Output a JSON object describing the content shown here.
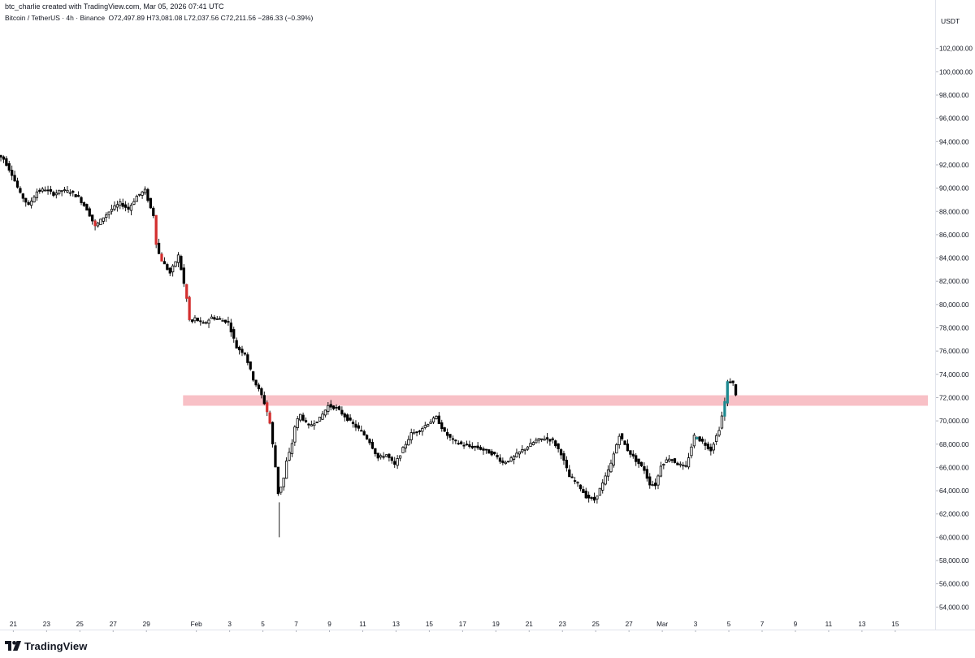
{
  "header": {
    "credit": "btc_charlie created with TradingView.com, Mar 05, 2026 07:41 UTC"
  },
  "legend": {
    "symbol": "Bitcoin / TetherUS · 4h · Binance",
    "open": "O72,497.89",
    "high": "H73,081.08",
    "low": "L72,037.56",
    "close": "C72,211.56",
    "change": "−286.33 (−0.39%)"
  },
  "price_axis": {
    "currency": "USDT"
  },
  "footer": {
    "brand": "TradingView",
    "logo_icon": "tradingview-logo-icon"
  },
  "colors": {
    "up_body": "#ffffff",
    "down_body": "#000000",
    "wick": "#000000",
    "zone": "#f8c0c6",
    "highlight_red": "#d32f2f",
    "highlight_teal": "#1e8a91",
    "grid": "#e0e3eb"
  },
  "chart_data": {
    "type": "candlestick",
    "symbol": "Bitcoin / TetherUS",
    "interval": "4h",
    "exchange": "Binance",
    "y_ticks": [
      102000,
      100000,
      98000,
      96000,
      94000,
      92000,
      90000,
      88000,
      86000,
      84000,
      82000,
      80000,
      78000,
      76000,
      74000,
      72000,
      70000,
      68000,
      66000,
      64000,
      62000,
      60000,
      58000,
      56000,
      54000
    ],
    "y_tick_labels": [
      "102,000.00",
      "100,000.00",
      "98,000.00",
      "96,000.00",
      "94,000.00",
      "92,000.00",
      "90,000.00",
      "88,000.00",
      "86,000.00",
      "84,000.00",
      "82,000.00",
      "80,000.00",
      "78,000.00",
      "76,000.00",
      "74,000.00",
      "72,000.00",
      "70,000.00",
      "68,000.00",
      "66,000.00",
      "64,000.00",
      "62,000.00",
      "60,000.00",
      "58,000.00",
      "56,000.00",
      "54,000.00"
    ],
    "ylim": [
      53000,
      103500
    ],
    "x_labels": [
      "21",
      "23",
      "25",
      "27",
      "29",
      "Feb",
      "3",
      "5",
      "7",
      "9",
      "11",
      "13",
      "15",
      "17",
      "19",
      "21",
      "23",
      "25",
      "27",
      "Mar",
      "3",
      "5",
      "7",
      "9",
      "11",
      "13",
      "15"
    ],
    "x_label_days": [
      -11,
      -9,
      -7,
      -5,
      -3,
      0,
      2,
      4,
      6,
      8,
      10,
      12,
      14,
      16,
      18,
      20,
      22,
      24,
      26,
      28,
      30,
      32,
      34,
      36,
      38,
      40,
      42
    ],
    "x_range_days": [
      -11.8,
      44.4
    ],
    "zone": {
      "low": 71300,
      "high": 72200,
      "start_day": -0.8
    },
    "keypoints": [
      [
        -12.0,
        93000
      ],
      [
        -11.5,
        92500
      ],
      [
        -11.0,
        91200
      ],
      [
        -10.5,
        89500
      ],
      [
        -10.0,
        88500
      ],
      [
        -9.5,
        89700
      ],
      [
        -9.0,
        89900
      ],
      [
        -8.5,
        89500
      ],
      [
        -8.0,
        89800
      ],
      [
        -7.5,
        89700
      ],
      [
        -7.0,
        89200
      ],
      [
        -6.5,
        88200
      ],
      [
        -6.0,
        86700
      ],
      [
        -5.5,
        87500
      ],
      [
        -5.0,
        88200
      ],
      [
        -4.5,
        88700
      ],
      [
        -4.0,
        88200
      ],
      [
        -3.5,
        89300
      ],
      [
        -3.0,
        89800
      ],
      [
        -2.7,
        88400
      ],
      [
        -2.5,
        87700
      ],
      [
        -2.3,
        84800
      ],
      [
        -2.0,
        83800
      ],
      [
        -1.5,
        82700
      ],
      [
        -1.0,
        84200
      ],
      [
        -0.8,
        82800
      ],
      [
        -0.5,
        80500
      ],
      [
        -0.3,
        78300
      ],
      [
        0.0,
        78800
      ],
      [
        0.5,
        78300
      ],
      [
        1.0,
        78900
      ],
      [
        1.5,
        78700
      ],
      [
        2.0,
        78500
      ],
      [
        2.5,
        76300
      ],
      [
        3.0,
        75800
      ],
      [
        3.5,
        73600
      ],
      [
        4.0,
        72200
      ],
      [
        4.3,
        71000
      ],
      [
        4.5,
        69800
      ],
      [
        4.8,
        66500
      ],
      [
        5.0,
        63800
      ],
      [
        5.3,
        64800
      ],
      [
        5.5,
        66500
      ],
      [
        5.8,
        67800
      ],
      [
        6.0,
        69500
      ],
      [
        6.3,
        70600
      ],
      [
        6.8,
        69500
      ],
      [
        7.5,
        70200
      ],
      [
        8.0,
        71300
      ],
      [
        8.5,
        71100
      ],
      [
        9.0,
        70400
      ],
      [
        9.5,
        69700
      ],
      [
        10.0,
        69100
      ],
      [
        10.5,
        68200
      ],
      [
        11.0,
        66800
      ],
      [
        11.5,
        67100
      ],
      [
        12.0,
        66200
      ],
      [
        12.5,
        67600
      ],
      [
        13.0,
        68900
      ],
      [
        13.5,
        69200
      ],
      [
        14.0,
        69800
      ],
      [
        14.5,
        70300
      ],
      [
        15.0,
        69000
      ],
      [
        15.5,
        68300
      ],
      [
        16.0,
        68000
      ],
      [
        16.5,
        67800
      ],
      [
        17.0,
        67700
      ],
      [
        18.0,
        67100
      ],
      [
        18.5,
        66400
      ],
      [
        19.0,
        66700
      ],
      [
        19.5,
        67300
      ],
      [
        20.0,
        67800
      ],
      [
        20.5,
        68300
      ],
      [
        21.0,
        68500
      ],
      [
        21.5,
        68300
      ],
      [
        22.0,
        67200
      ],
      [
        22.5,
        65200
      ],
      [
        23.0,
        64600
      ],
      [
        23.5,
        63500
      ],
      [
        24.0,
        63200
      ],
      [
        24.5,
        64600
      ],
      [
        25.0,
        66300
      ],
      [
        25.5,
        68800
      ],
      [
        26.0,
        67500
      ],
      [
        26.5,
        66600
      ],
      [
        27.0,
        65800
      ],
      [
        27.3,
        64600
      ],
      [
        27.7,
        64500
      ],
      [
        28.0,
        66200
      ],
      [
        28.5,
        66800
      ],
      [
        29.0,
        66300
      ],
      [
        29.5,
        66000
      ],
      [
        30.0,
        68700
      ],
      [
        30.5,
        68200
      ],
      [
        31.0,
        67500
      ],
      [
        31.5,
        69300
      ],
      [
        31.8,
        71300
      ],
      [
        32.0,
        73300
      ],
      [
        32.3,
        73400
      ],
      [
        32.5,
        72300
      ]
    ],
    "highlight_candles": [
      {
        "day": -6.17,
        "color": "red"
      },
      {
        "day": -2.5,
        "color": "red"
      },
      {
        "day": -2.17,
        "color": "red"
      },
      {
        "day": -0.67,
        "color": "red"
      },
      {
        "day": -0.5,
        "color": "red"
      },
      {
        "day": 4.17,
        "color": "red"
      },
      {
        "day": 4.33,
        "color": "red"
      },
      {
        "day": 30.0,
        "color": "teal"
      },
      {
        "day": 31.67,
        "color": "teal"
      },
      {
        "day": 31.83,
        "color": "teal"
      }
    ]
  }
}
